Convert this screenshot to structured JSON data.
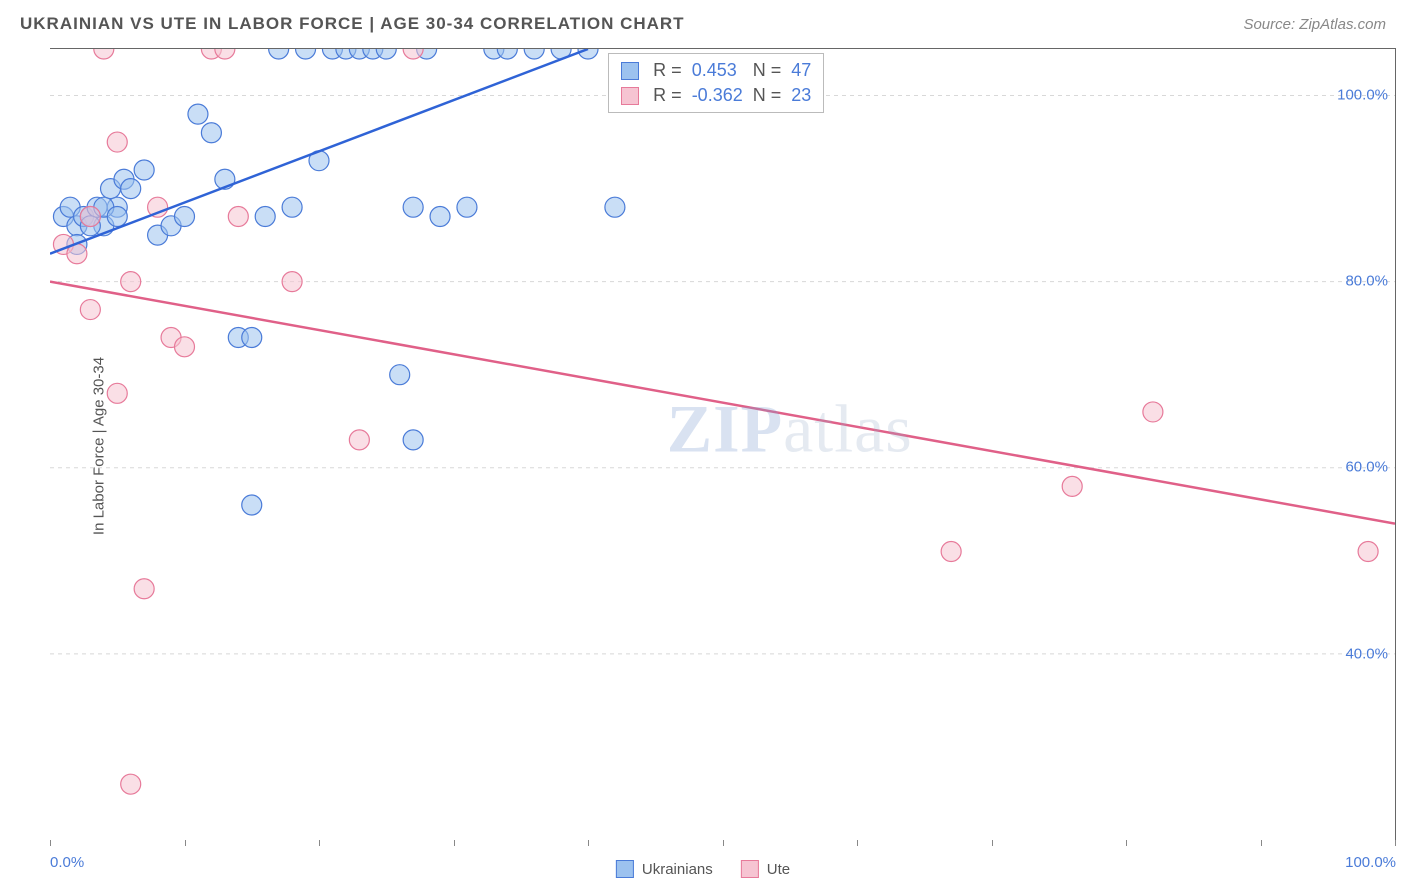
{
  "title": "UKRAINIAN VS UTE IN LABOR FORCE | AGE 30-34 CORRELATION CHART",
  "source": "Source: ZipAtlas.com",
  "ylabel": "In Labor Force | Age 30-34",
  "watermark_a": "ZIP",
  "watermark_b": "atlas",
  "chart": {
    "type": "scatter-with-regression",
    "background_color": "#ffffff",
    "grid_color": "#d8d8d8",
    "grid_dash": "4,4",
    "axis_color": "#666666",
    "xlim": [
      0,
      100
    ],
    "ylim": [
      20,
      105
    ],
    "xticks": [
      0,
      10,
      20,
      30,
      40,
      50,
      60,
      70,
      80,
      90,
      100
    ],
    "xtick_labels": {
      "0": "0.0%",
      "100": "100.0%"
    },
    "yticks": [
      40,
      60,
      80,
      100
    ],
    "ytick_labels": {
      "40": "40.0%",
      "60": "60.0%",
      "80": "80.0%",
      "100": "100.0%"
    },
    "label_color": "#4a7bd8",
    "label_fontsize": 15,
    "marker_radius": 10,
    "marker_opacity": 0.55,
    "line_width": 2.5,
    "series": [
      {
        "name": "Ukrainians",
        "color_fill": "#9cc2ef",
        "color_stroke": "#4a7bd8",
        "line_color": "#2f63d6",
        "R": "0.453",
        "N": "47",
        "regression": {
          "x1": 0,
          "y1": 83,
          "x2": 40,
          "y2": 105
        },
        "points": [
          [
            1,
            87
          ],
          [
            1.5,
            88
          ],
          [
            2,
            86
          ],
          [
            2.5,
            87
          ],
          [
            3,
            87
          ],
          [
            3.5,
            88
          ],
          [
            4,
            86
          ],
          [
            4.5,
            90
          ],
          [
            5,
            88
          ],
          [
            5.5,
            91
          ],
          [
            2,
            84
          ],
          [
            3,
            86
          ],
          [
            4,
            88
          ],
          [
            5,
            87
          ],
          [
            6,
            90
          ],
          [
            7,
            92
          ],
          [
            8,
            85
          ],
          [
            9,
            86
          ],
          [
            10,
            87
          ],
          [
            11,
            98
          ],
          [
            12,
            96
          ],
          [
            13,
            91
          ],
          [
            14,
            74
          ],
          [
            15,
            74
          ],
          [
            16,
            87
          ],
          [
            17,
            105
          ],
          [
            18,
            88
          ],
          [
            19,
            105
          ],
          [
            20,
            93
          ],
          [
            21,
            105
          ],
          [
            22,
            105
          ],
          [
            23,
            105
          ],
          [
            24,
            105
          ],
          [
            25,
            105
          ],
          [
            26,
            70
          ],
          [
            27,
            88
          ],
          [
            28,
            105
          ],
          [
            29,
            87
          ],
          [
            15,
            56
          ],
          [
            27,
            63
          ],
          [
            31,
            88
          ],
          [
            33,
            105
          ],
          [
            34,
            105
          ],
          [
            36,
            105
          ],
          [
            38,
            105
          ],
          [
            40,
            105
          ],
          [
            42,
            88
          ]
        ]
      },
      {
        "name": "Ute",
        "color_fill": "#f6c4d2",
        "color_stroke": "#e77a9a",
        "line_color": "#e06088",
        "R": "-0.362",
        "N": "23",
        "regression": {
          "x1": 0,
          "y1": 80,
          "x2": 100,
          "y2": 54
        },
        "points": [
          [
            1,
            84
          ],
          [
            2,
            83
          ],
          [
            3,
            77
          ],
          [
            4,
            105
          ],
          [
            5,
            95
          ],
          [
            6,
            80
          ],
          [
            7,
            47
          ],
          [
            8,
            88
          ],
          [
            9,
            74
          ],
          [
            10,
            73
          ],
          [
            12,
            105
          ],
          [
            13,
            105
          ],
          [
            14,
            87
          ],
          [
            18,
            80
          ],
          [
            23,
            63
          ],
          [
            27,
            105
          ],
          [
            6,
            26
          ],
          [
            5,
            68
          ],
          [
            67,
            51
          ],
          [
            76,
            58
          ],
          [
            82,
            66
          ],
          [
            98,
            51
          ],
          [
            3,
            87
          ]
        ]
      }
    ],
    "bottom_legend": [
      {
        "label": "Ukrainians",
        "fill": "#9cc2ef",
        "stroke": "#4a7bd8"
      },
      {
        "label": "Ute",
        "fill": "#f6c4d2",
        "stroke": "#e77a9a"
      }
    ],
    "stat_box": {
      "left_pct": 41.5,
      "top_pct": 0,
      "rows": [
        {
          "fill": "#9cc2ef",
          "stroke": "#4a7bd8",
          "r_label": "R =",
          "r_val": "0.453",
          "n_label": "N =",
          "n_val": "47"
        },
        {
          "fill": "#f6c4d2",
          "stroke": "#e77a9a",
          "r_label": "R =",
          "r_val": "-0.362",
          "n_label": "N =",
          "n_val": "23"
        }
      ]
    }
  }
}
